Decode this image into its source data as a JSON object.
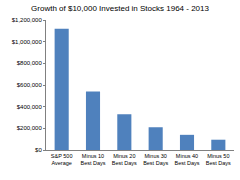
{
  "chart_data": {
    "type": "bar",
    "title": "Growth of $10,000 Invested in Stocks 1964 - 2013",
    "categories": [
      "S&P 500 Average",
      "Minus 10 Best Days",
      "Minus 20 Best Days",
      "Minus 30 Best Days",
      "Minus 40 Best Days",
      "Minus 50 Best Days"
    ],
    "values": [
      1120000,
      540000,
      330000,
      210000,
      140000,
      95000
    ],
    "color": "#4f81bd",
    "ylim": [
      0,
      1200000
    ],
    "yticks": [
      {
        "value": 0,
        "label": "$0"
      },
      {
        "value": 200000,
        "label": "$200,000"
      },
      {
        "value": 400000,
        "label": "$400,000"
      },
      {
        "value": 600000,
        "label": "$600,000"
      },
      {
        "value": 800000,
        "label": "$800,000"
      },
      {
        "value": 1000000,
        "label": "$1,000,000"
      },
      {
        "value": 1200000,
        "label": "$1,200,000"
      }
    ],
    "grid": false
  }
}
